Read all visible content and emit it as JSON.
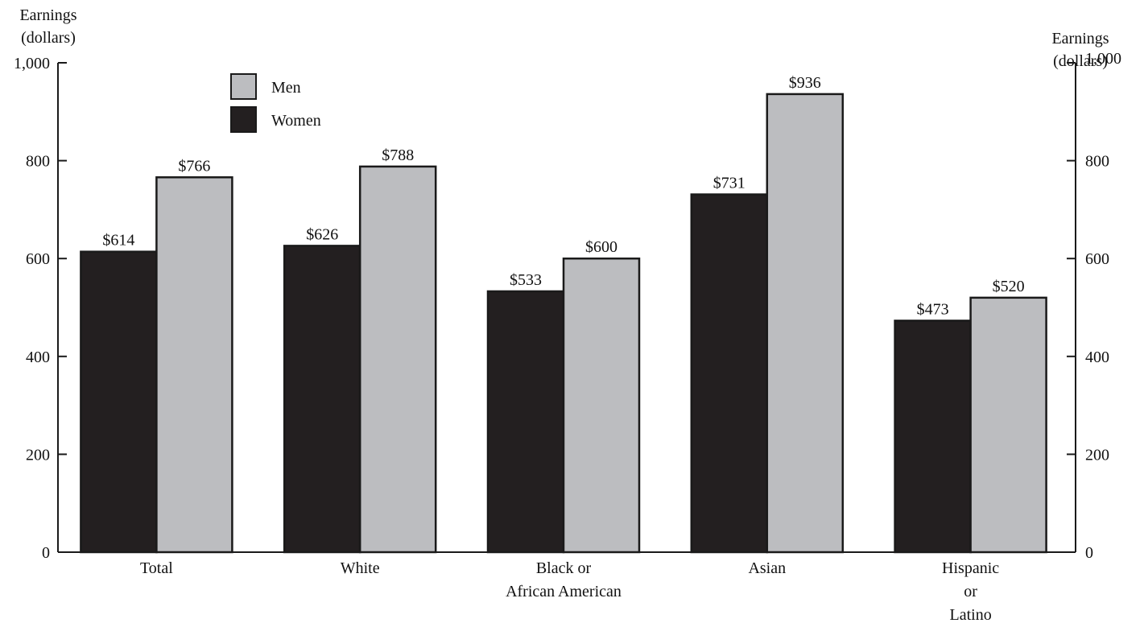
{
  "chart_data": {
    "type": "bar",
    "categories": [
      [
        "Total"
      ],
      [
        "White"
      ],
      [
        "Black or",
        "African American"
      ],
      [
        "Asian"
      ],
      [
        "Hispanic",
        "or",
        "Latino"
      ]
    ],
    "series": [
      {
        "name": "Women",
        "values": [
          614,
          626,
          533,
          731,
          473
        ],
        "labels": [
          "$614",
          "$626",
          "$533",
          "$731",
          "$473"
        ],
        "color": "#231f20"
      },
      {
        "name": "Men",
        "values": [
          766,
          788,
          600,
          936,
          520
        ],
        "labels": [
          "$766",
          "$788",
          "$600",
          "$936",
          "$520"
        ],
        "color": "#bcbdc0"
      }
    ],
    "legend_order": [
      "Men",
      "Women"
    ],
    "legend_placement": "top-left",
    "ylabel_left": [
      "Earnings",
      "(dollars)"
    ],
    "ylabel_right": [
      "Earnings",
      "(dollars)"
    ],
    "ylim": [
      0,
      1000
    ],
    "yticks": [
      0,
      200,
      400,
      600,
      800,
      1000
    ],
    "ytick_labels": [
      "0",
      "200",
      "400",
      "600",
      "800",
      "1,000"
    ],
    "grid": false
  }
}
